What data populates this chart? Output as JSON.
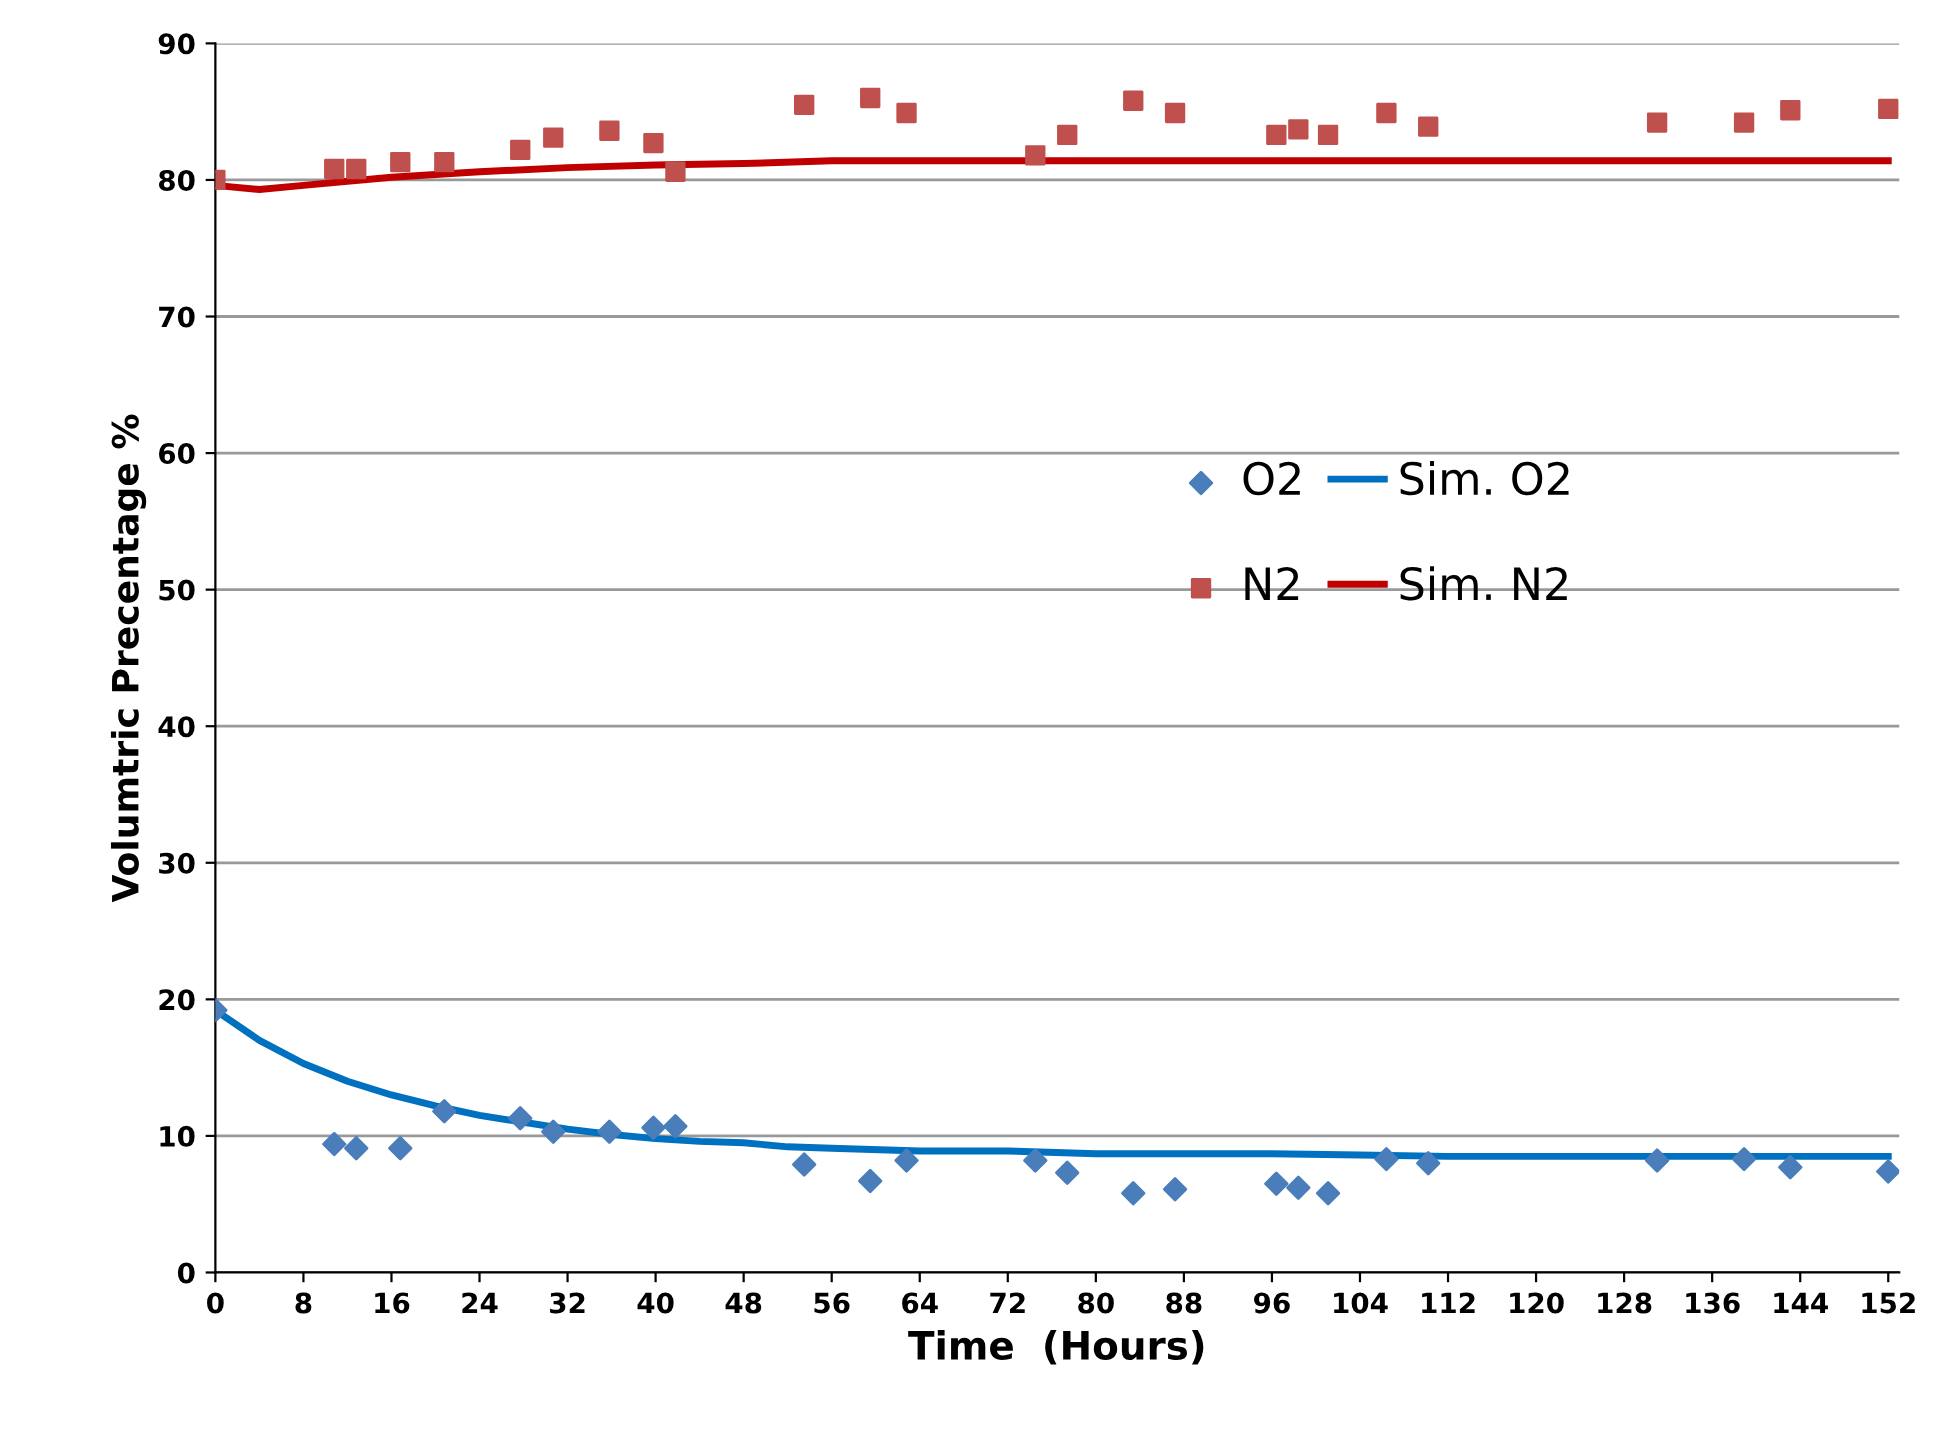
{
  "chart_data": {
    "type": "scatter",
    "xlabel": "Time  (Hours)",
    "ylabel": "Volumtric Precentage %",
    "xlim": [
      0,
      153
    ],
    "xticks": [
      0,
      8,
      16,
      24,
      32,
      40,
      48,
      56,
      64,
      72,
      80,
      88,
      96,
      104,
      112,
      120,
      128,
      136,
      144,
      152
    ],
    "ylim": [
      0,
      90
    ],
    "yticks": [
      0,
      10,
      20,
      30,
      40,
      50,
      60,
      70,
      80,
      90
    ],
    "grid": "y",
    "legend": "right",
    "series": [
      {
        "name": "O2",
        "marker": "diamond",
        "color": "#4a7ebb",
        "x": [
          0,
          10.8,
          12.8,
          16.8,
          20.8,
          27.7,
          30.7,
          35.8,
          39.8,
          41.8,
          53.5,
          59.5,
          62.8,
          74.5,
          77.4,
          83.4,
          87.2,
          96.4,
          98.4,
          101.1,
          106.4,
          110.2,
          131,
          138.9,
          143.1,
          152
        ],
        "values": [
          19.2,
          9.4,
          9.1,
          9.1,
          11.8,
          11.3,
          10.3,
          10.3,
          10.6,
          10.7,
          7.9,
          6.7,
          8.2,
          8.2,
          7.3,
          5.8,
          6.1,
          6.5,
          6.2,
          5.8,
          8.3,
          8.0,
          8.2,
          8.3,
          7.7,
          7.4
        ]
      },
      {
        "name": "Sim. O2",
        "type": "line",
        "color": "#0070c0",
        "x": [
          0,
          4,
          8,
          12,
          16,
          20,
          24,
          28,
          32,
          36,
          40,
          44,
          48,
          52,
          56,
          64,
          72,
          80,
          96,
          104,
          112,
          152
        ],
        "values": [
          19.2,
          17.0,
          15.3,
          14.0,
          13.0,
          12.2,
          11.5,
          11.0,
          10.5,
          10.1,
          9.8,
          9.6,
          9.5,
          9.2,
          9.1,
          8.9,
          8.9,
          8.7,
          8.7,
          8.6,
          8.5,
          8.5
        ]
      },
      {
        "name": "N2",
        "marker": "square",
        "color": "#c0504d",
        "x": [
          0,
          10.8,
          12.8,
          16.8,
          20.8,
          27.7,
          30.7,
          35.8,
          39.8,
          41.8,
          53.5,
          59.5,
          62.8,
          74.5,
          77.4,
          83.4,
          87.2,
          96.4,
          98.4,
          101.1,
          106.4,
          110.2,
          131,
          138.9,
          143.1,
          152
        ],
        "values": [
          80.0,
          80.8,
          80.8,
          81.3,
          81.3,
          82.2,
          83.1,
          83.6,
          82.7,
          80.6,
          85.5,
          86.0,
          84.9,
          81.8,
          83.3,
          85.8,
          84.9,
          83.3,
          83.7,
          83.3,
          84.9,
          83.9,
          84.2,
          84.2,
          85.1,
          85.2
        ]
      },
      {
        "name": "Sim. N2",
        "type": "line",
        "color": "#c00000",
        "x": [
          0,
          4,
          8,
          16,
          24,
          32,
          40,
          48,
          56,
          72,
          152
        ],
        "values": [
          79.6,
          79.3,
          79.6,
          80.2,
          80.6,
          80.9,
          81.1,
          81.2,
          81.4,
          81.4,
          81.4
        ]
      }
    ]
  }
}
